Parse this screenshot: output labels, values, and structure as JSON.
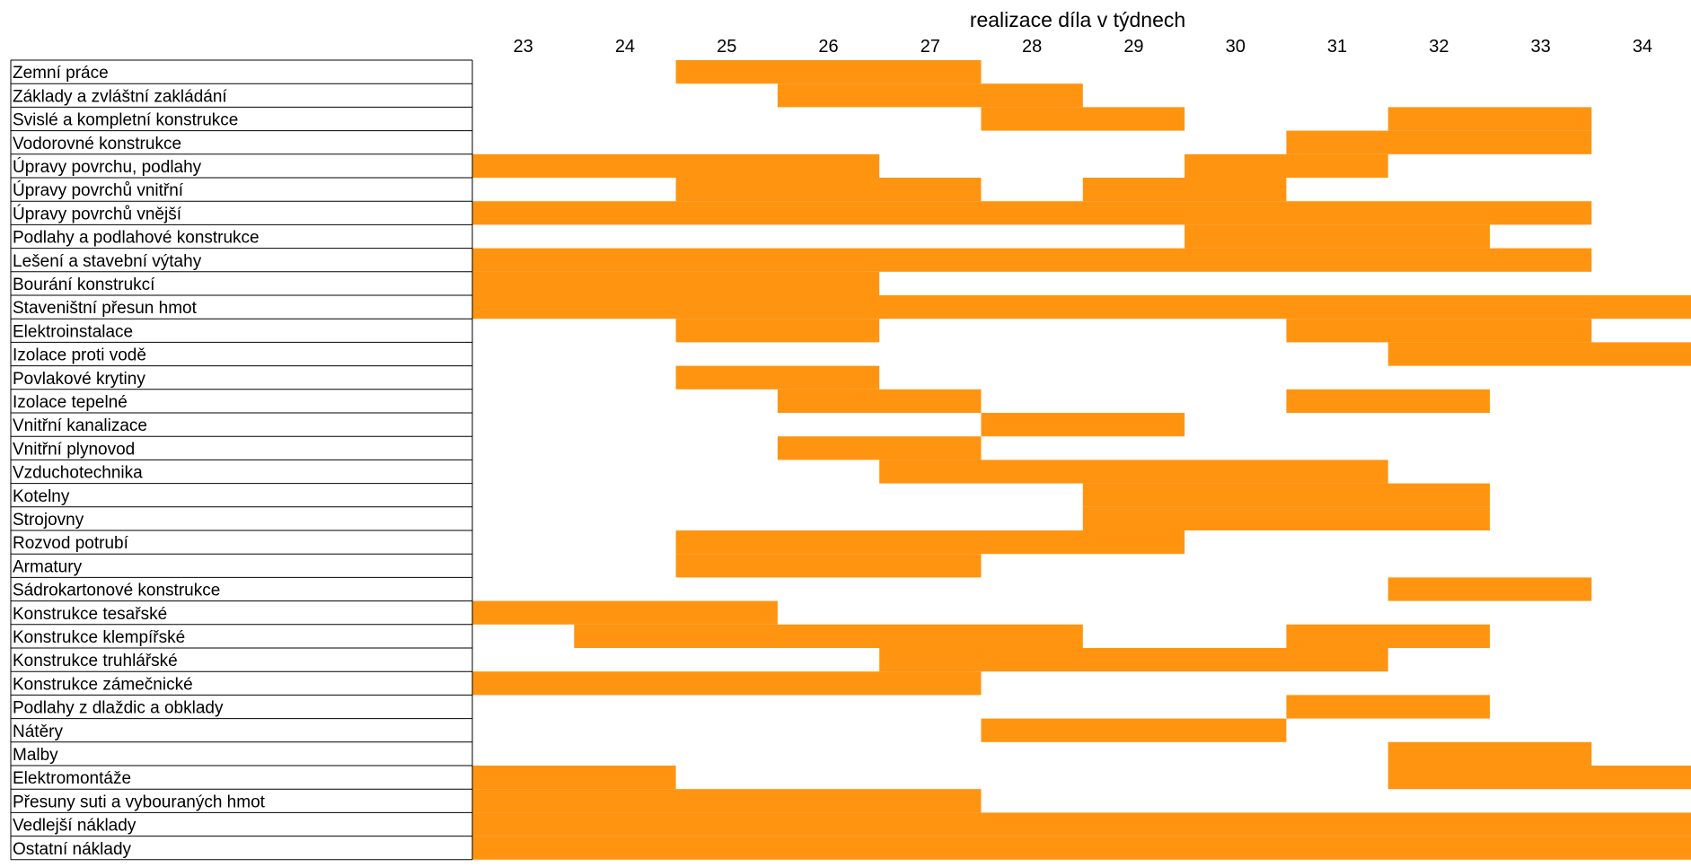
{
  "chart_data": {
    "type": "gantt",
    "title": "realizace díla v týdnech",
    "bar_color": "#FF9411",
    "weeks": [
      "23",
      "24",
      "25",
      "26",
      "27",
      "28",
      "29",
      "30",
      "31",
      "32",
      "33",
      "34"
    ],
    "tasks": [
      {
        "label": "Zemní práce",
        "weeks": [
          "25",
          "26",
          "27"
        ]
      },
      {
        "label": "Základy a zvláštní zakládání",
        "weeks": [
          "26",
          "27",
          "28"
        ]
      },
      {
        "label": "Svislé a kompletní konstrukce",
        "weeks": [
          "28",
          "29",
          "32",
          "33"
        ]
      },
      {
        "label": "Vodorovné konstrukce",
        "weeks": [
          "31",
          "32",
          "33"
        ]
      },
      {
        "label": "Úpravy povrchu, podlahy",
        "weeks": [
          "23",
          "24",
          "25",
          "26",
          "30",
          "31"
        ]
      },
      {
        "label": "Úpravy povrchů vnitřní",
        "weeks": [
          "25",
          "26",
          "27",
          "29",
          "30"
        ]
      },
      {
        "label": "Úpravy povrchů vnější",
        "weeks": [
          "23",
          "24",
          "25",
          "26",
          "27",
          "28",
          "29",
          "30",
          "31",
          "32",
          "33"
        ]
      },
      {
        "label": "Podlahy a podlahové konstrukce",
        "weeks": [
          "30",
          "31",
          "32"
        ]
      },
      {
        "label": "Lešení a stavební výtahy",
        "weeks": [
          "23",
          "24",
          "25",
          "26",
          "27",
          "28",
          "29",
          "30",
          "31",
          "32",
          "33"
        ]
      },
      {
        "label": "Bourání konstrukcí",
        "weeks": [
          "23",
          "24",
          "25",
          "26"
        ]
      },
      {
        "label": "Staveništní přesun hmot",
        "weeks": [
          "23",
          "24",
          "25",
          "26",
          "27",
          "28",
          "29",
          "30",
          "31",
          "32",
          "33",
          "34"
        ]
      },
      {
        "label": "Elektroinstalace",
        "weeks": [
          "25",
          "26",
          "31",
          "32",
          "33"
        ]
      },
      {
        "label": "Izolace proti vodě",
        "weeks": [
          "32",
          "33",
          "34"
        ]
      },
      {
        "label": "Povlakové krytiny",
        "weeks": [
          "25",
          "26"
        ]
      },
      {
        "label": "Izolace tepelné",
        "weeks": [
          "26",
          "27",
          "31",
          "32"
        ]
      },
      {
        "label": "Vnitřní kanalizace",
        "weeks": [
          "28",
          "29"
        ]
      },
      {
        "label": "Vnitřní plynovod",
        "weeks": [
          "26",
          "27"
        ]
      },
      {
        "label": "Vzduchotechnika",
        "weeks": [
          "27",
          "28",
          "29",
          "30",
          "31"
        ]
      },
      {
        "label": "Kotelny",
        "weeks": [
          "29",
          "30",
          "31",
          "32"
        ]
      },
      {
        "label": "Strojovny",
        "weeks": [
          "29",
          "30",
          "31",
          "32"
        ]
      },
      {
        "label": "Rozvod potrubí",
        "weeks": [
          "25",
          "26",
          "27",
          "28",
          "29"
        ]
      },
      {
        "label": "Armatury",
        "weeks": [
          "25",
          "26",
          "27"
        ]
      },
      {
        "label": "Sádrokartonové konstrukce",
        "weeks": [
          "32",
          "33"
        ]
      },
      {
        "label": "Konstrukce tesařské",
        "weeks": [
          "23",
          "24",
          "25"
        ]
      },
      {
        "label": "Konstrukce klempířské",
        "weeks": [
          "24",
          "25",
          "26",
          "27",
          "28",
          "31",
          "32"
        ]
      },
      {
        "label": "Konstrukce truhlářské",
        "weeks": [
          "27",
          "28",
          "29",
          "30",
          "31"
        ]
      },
      {
        "label": "Konstrukce zámečnické",
        "weeks": [
          "23",
          "24",
          "25",
          "26",
          "27"
        ]
      },
      {
        "label": "Podlahy z dlaždic a obklady",
        "weeks": [
          "31",
          "32"
        ]
      },
      {
        "label": "Nátěry",
        "weeks": [
          "28",
          "29",
          "30"
        ]
      },
      {
        "label": "Malby",
        "weeks": [
          "32",
          "33"
        ]
      },
      {
        "label": "Elektromontáže",
        "weeks": [
          "23",
          "24",
          "32",
          "33",
          "34"
        ]
      },
      {
        "label": "Přesuny suti a vybouraných hmot",
        "weeks": [
          "23",
          "24",
          "25",
          "26",
          "27"
        ]
      },
      {
        "label": "Vedlejší náklady",
        "weeks": [
          "23",
          "24",
          "25",
          "26",
          "27",
          "28",
          "29",
          "30",
          "31",
          "32",
          "33",
          "34"
        ]
      },
      {
        "label": "Ostatní náklady",
        "weeks": [
          "23",
          "24",
          "25",
          "26",
          "27",
          "28",
          "29",
          "30",
          "31",
          "32",
          "33",
          "34"
        ]
      }
    ]
  }
}
